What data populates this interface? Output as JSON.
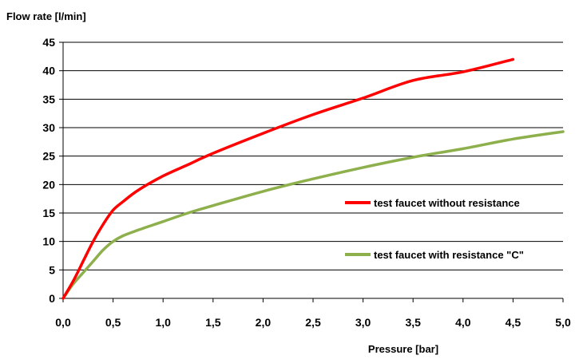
{
  "chart_data": {
    "type": "line",
    "title": "",
    "xlabel": "Pressure [bar]",
    "ylabel": "Flow rate [l/min]",
    "xlim": [
      0,
      5
    ],
    "ylim": [
      0,
      45
    ],
    "x_ticks": [
      "0,0",
      "0,5",
      "1,0",
      "1,5",
      "2,0",
      "2,5",
      "3,0",
      "3,5",
      "4,0",
      "4,5",
      "5,0"
    ],
    "y_ticks": [
      "0",
      "5",
      "10",
      "15",
      "20",
      "25",
      "30",
      "35",
      "40",
      "45"
    ],
    "grid": "horizontal",
    "legend_position": "right-inside",
    "series": [
      {
        "name": "test faucet without resistance",
        "color": "#ff0000",
        "x": [
          0,
          0.1,
          0.2,
          0.3,
          0.4,
          0.5,
          0.6,
          0.75,
          1.0,
          1.25,
          1.5,
          2.0,
          2.5,
          3.0,
          3.5,
          4.0,
          4.5
        ],
        "y": [
          0,
          3,
          6.5,
          10,
          13,
          15.5,
          17,
          19,
          21.5,
          23.5,
          25.5,
          29,
          32.3,
          35.2,
          38.3,
          39.8,
          42
        ]
      },
      {
        "name": "test faucet with resistance \"C\"",
        "color": "#8db04c",
        "x": [
          0,
          0.1,
          0.2,
          0.3,
          0.4,
          0.5,
          0.6,
          0.75,
          1.0,
          1.25,
          1.5,
          2.0,
          2.5,
          3.0,
          3.5,
          4.0,
          4.5,
          5.0
        ],
        "y": [
          0,
          2.5,
          4.5,
          6.5,
          8.5,
          10,
          11,
          12,
          13.5,
          15,
          16.3,
          18.8,
          21,
          23,
          24.8,
          26.3,
          28,
          29.3
        ]
      }
    ]
  }
}
